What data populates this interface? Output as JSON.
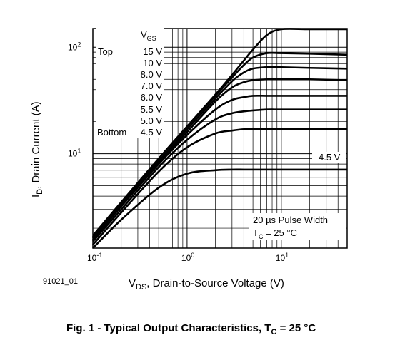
{
  "figure": {
    "id_label": "91021_01",
    "caption_prefix": "Fig. 1 - Typical Output Characteristics, T",
    "caption_sub": "C",
    "caption_suffix": " = 25 °C"
  },
  "chart_data": {
    "type": "line",
    "title": "",
    "xlabel_main": "V",
    "xlabel_sub": "DS",
    "xlabel_rest": ", Drain-to-Source Voltage (V)",
    "ylabel_main": "I",
    "ylabel_sub": "D",
    "ylabel_rest": ", Drain Current (A)",
    "x_scale": "log",
    "y_scale": "log",
    "xlim": [
      0.1,
      50
    ],
    "ylim": [
      1.3,
      150
    ],
    "x_ticks": [
      {
        "base": "10",
        "exp": "-1",
        "value": 0.1
      },
      {
        "base": "10",
        "exp": "0",
        "value": 1
      },
      {
        "base": "10",
        "exp": "1",
        "value": 10
      }
    ],
    "y_ticks": [
      {
        "base": "10",
        "exp": "1",
        "value": 10
      },
      {
        "base": "10",
        "exp": "2",
        "value": 100
      }
    ],
    "grid": true,
    "legend": {
      "header_main": "V",
      "header_sub": "GS",
      "top_label": "Top",
      "bottom_label": "Bottom",
      "entries": [
        "15 V",
        "10 V",
        "8.0 V",
        "7.0 V",
        "6.0 V",
        "5.5 V",
        "5.0 V",
        "4.5 V"
      ]
    },
    "annotations": {
      "curve_label": "4.5 V",
      "pulse": "20 µs Pulse Width",
      "tc_main": "T",
      "tc_sub": "C",
      "tc_rest": " = 25 °C"
    },
    "series": [
      {
        "name": "15 V",
        "x": [
          0.1,
          0.2,
          0.5,
          1,
          2,
          3,
          4,
          5,
          7,
          10,
          20,
          50
        ],
        "y": [
          1.7,
          3.5,
          9,
          18,
          36,
          55,
          75,
          95,
          130,
          150,
          150,
          150
        ]
      },
      {
        "name": "10 V",
        "x": [
          0.1,
          0.2,
          0.5,
          1,
          2,
          3,
          4,
          5,
          7,
          10,
          20,
          50
        ],
        "y": [
          1.7,
          3.5,
          9,
          18,
          35,
          52,
          68,
          80,
          88,
          88,
          87,
          85
        ]
      },
      {
        "name": "8.0 V",
        "x": [
          0.1,
          0.2,
          0.5,
          1,
          2,
          3,
          4,
          5,
          7,
          10,
          20,
          50
        ],
        "y": [
          1.65,
          3.4,
          8.5,
          17,
          33,
          48,
          58,
          63,
          65,
          65,
          64,
          63
        ]
      },
      {
        "name": "7.0 V",
        "x": [
          0.1,
          0.2,
          0.5,
          1,
          2,
          3,
          4,
          5,
          7,
          10,
          20,
          50
        ],
        "y": [
          1.6,
          3.3,
          8.3,
          16,
          31,
          42,
          47,
          49,
          50,
          50,
          50,
          49
        ]
      },
      {
        "name": "6.0 V",
        "x": [
          0.1,
          0.2,
          0.5,
          1,
          2,
          3,
          4,
          5,
          7,
          10,
          20,
          50
        ],
        "y": [
          1.55,
          3.2,
          8,
          15,
          26,
          32,
          34,
          35,
          35,
          35,
          35,
          35
        ]
      },
      {
        "name": "5.5 V",
        "x": [
          0.1,
          0.2,
          0.5,
          1,
          2,
          3,
          4,
          5,
          7,
          10,
          20,
          50
        ],
        "y": [
          1.5,
          3,
          7.5,
          13.5,
          21,
          24,
          25,
          25.5,
          26,
          26,
          26,
          26
        ]
      },
      {
        "name": "5.0 V",
        "x": [
          0.1,
          0.2,
          0.5,
          1,
          2,
          3,
          4,
          5,
          7,
          10,
          20,
          50
        ],
        "y": [
          1.4,
          2.8,
          6.8,
          11.5,
          15.5,
          16.5,
          17,
          17,
          17,
          17,
          17,
          17
        ]
      },
      {
        "name": "4.5 V",
        "x": [
          0.1,
          0.2,
          0.5,
          1,
          2,
          3,
          4,
          5,
          7,
          10,
          20,
          50
        ],
        "y": [
          1.3,
          2.4,
          4.8,
          6.5,
          7,
          7.1,
          7.1,
          7.1,
          7.1,
          7.1,
          7.1,
          7.1
        ]
      }
    ]
  }
}
